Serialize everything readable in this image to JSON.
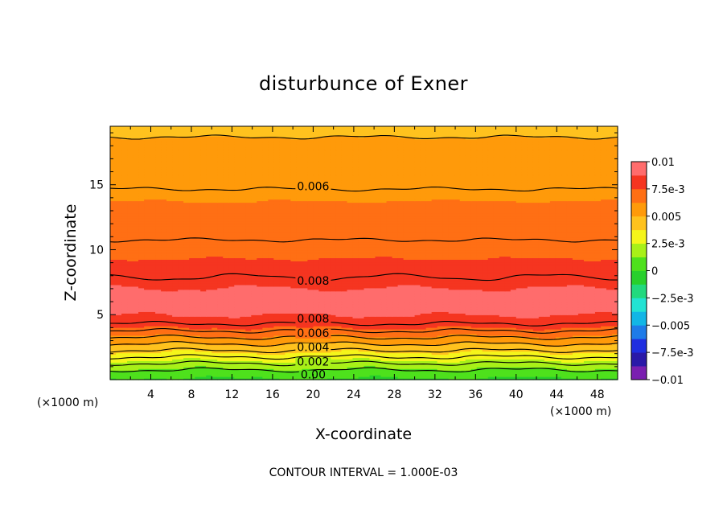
{
  "chart_data": {
    "type": "heatmap",
    "title": "disturbunce of Exner",
    "xlabel": "X-coordinate",
    "ylabel": "Z-coordinate",
    "x_unit": "(×1000 m)",
    "y_unit": "(×1000 m)",
    "xlim": [
      0,
      50
    ],
    "ylim": [
      0,
      19.5
    ],
    "x_ticks": [
      4,
      8,
      12,
      16,
      20,
      24,
      28,
      32,
      36,
      40,
      44,
      48
    ],
    "y_ticks": [
      5,
      10,
      15
    ],
    "footer": "CONTOUR INTERVAL = 1.000E-03",
    "contour_interval": 0.001,
    "contour_labels": [
      {
        "text": "0.006",
        "x": 20,
        "z": 14.9
      },
      {
        "text": "0.008",
        "x": 20,
        "z": 7.6
      },
      {
        "text": "0.008",
        "x": 20,
        "z": 4.7
      },
      {
        "text": "0.006",
        "x": 20,
        "z": 3.6
      },
      {
        "text": "0.004",
        "x": 20,
        "z": 2.5
      },
      {
        "text": "0.002",
        "x": 20,
        "z": 1.4
      },
      {
        "text": "0.00",
        "x": 20,
        "z": 0.4
      }
    ],
    "vertical_profile": [
      {
        "z": 0.0,
        "value": -0.0002
      },
      {
        "z": 0.5,
        "value": 0.0005
      },
      {
        "z": 1.0,
        "value": 0.0015
      },
      {
        "z": 1.5,
        "value": 0.0025
      },
      {
        "z": 2.0,
        "value": 0.0035
      },
      {
        "z": 2.5,
        "value": 0.0045
      },
      {
        "z": 3.0,
        "value": 0.0055
      },
      {
        "z": 3.5,
        "value": 0.0065
      },
      {
        "z": 4.0,
        "value": 0.0075
      },
      {
        "z": 4.5,
        "value": 0.0083
      },
      {
        "z": 5.0,
        "value": 0.0088
      },
      {
        "z": 6.0,
        "value": 0.0093
      },
      {
        "z": 7.0,
        "value": 0.0088
      },
      {
        "z": 8.0,
        "value": 0.0079
      },
      {
        "z": 9.0,
        "value": 0.0076
      },
      {
        "z": 10.0,
        "value": 0.0073
      },
      {
        "z": 11.0,
        "value": 0.0069
      },
      {
        "z": 12.0,
        "value": 0.0066
      },
      {
        "z": 13.0,
        "value": 0.0064
      },
      {
        "z": 14.0,
        "value": 0.0062
      },
      {
        "z": 15.0,
        "value": 0.0059
      },
      {
        "z": 16.0,
        "value": 0.0056
      },
      {
        "z": 17.0,
        "value": 0.0054
      },
      {
        "z": 18.0,
        "value": 0.0052
      },
      {
        "z": 19.0,
        "value": 0.0049
      },
      {
        "z": 19.5,
        "value": 0.0048
      }
    ],
    "colorbar": {
      "labels": [
        "0.01",
        "7.5e-3",
        "0.005",
        "2.5e-3",
        "0",
        "−2.5e-3",
        "−0.005",
        "−7.5e-3",
        "−0.01"
      ],
      "vmin": -0.01,
      "vmax": 0.01,
      "levels": 16,
      "colors": [
        "#7a1fb0",
        "#2a19a8",
        "#1f2ee0",
        "#1e7be8",
        "#12b6e6",
        "#22e3d3",
        "#22d97e",
        "#28d02c",
        "#4ee11c",
        "#a8f018",
        "#f5f51a",
        "#ffc21e",
        "#ff9a0a",
        "#ff6f14",
        "#f53520",
        "#ff6c6c"
      ]
    },
    "grid": false,
    "legend": "right"
  }
}
